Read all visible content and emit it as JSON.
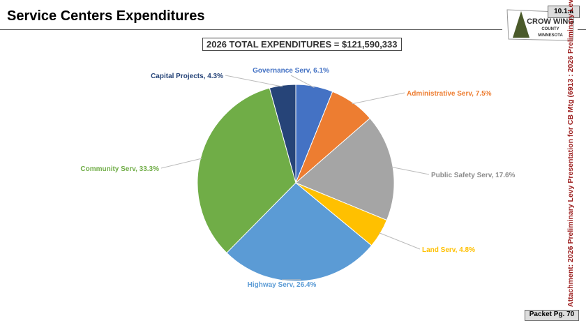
{
  "header": {
    "title": "Service Centers Expenditures",
    "badge": "10.1.a",
    "logo_text": [
      "CROW WING",
      "COUNTY",
      "MINNESOTA"
    ]
  },
  "side_text": "Attachment: 2026 Preliminary Levy Presentation for CB Mtg  (6913 : 2026 Preliminary Levy",
  "footer": {
    "packet": "Packet Pg. 70"
  },
  "chart_data": {
    "type": "pie",
    "title": "2026 TOTAL EXPENDITURES = $121,590,333",
    "start": "top",
    "direction": "clockwise",
    "slices": [
      {
        "name": "Governance Serv",
        "value": 6.1,
        "label": "Governance Serv, 6.1%",
        "color": "#4472c4"
      },
      {
        "name": "Administrative Serv",
        "value": 7.5,
        "label": "Administrative Serv, 7.5%",
        "color": "#ed7d31"
      },
      {
        "name": "Public Safety Serv",
        "value": 17.6,
        "label": "Public Safety Serv, 17.6%",
        "color": "#a5a5a5"
      },
      {
        "name": "Land Serv",
        "value": 4.8,
        "label": "Land Serv, 4.8%",
        "color": "#ffc000"
      },
      {
        "name": "Highway Serv",
        "value": 26.4,
        "label": "Highway Serv, 26.4%",
        "color": "#5b9bd5"
      },
      {
        "name": "Community Serv",
        "value": 33.3,
        "label": "Community Serv, 33.3%",
        "color": "#70ad47"
      },
      {
        "name": "Capital Projects",
        "value": 4.3,
        "label": "Capital Projects, 4.3%",
        "color": "#264478"
      }
    ]
  }
}
